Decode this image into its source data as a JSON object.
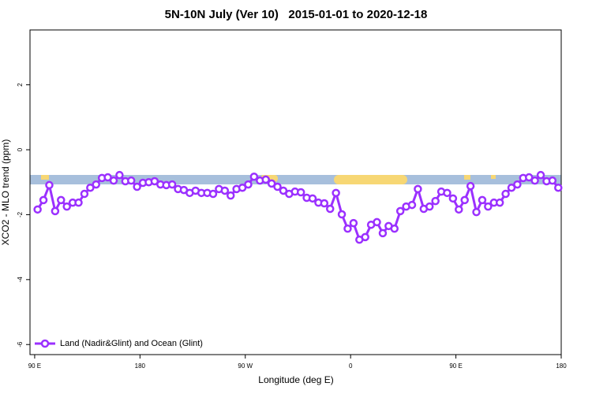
{
  "chart_data": {
    "type": "line",
    "title": "5N-10N July (Ver 10)   2015-01-01 to 2020-12-18",
    "x_label": "Longitude (deg E)",
    "y_label": "XCO2 - MLO trend (ppm)",
    "x": [
      92.5,
      97.5,
      102.5,
      107.5,
      112.5,
      117.5,
      122.5,
      127.5,
      132.5,
      137.5,
      142.5,
      147.5,
      152.5,
      157.5,
      162.5,
      167.5,
      172.5,
      177.5,
      182.5,
      187.5,
      192.5,
      197.5,
      202.5,
      207.5,
      212.5,
      217.5,
      222.5,
      227.5,
      232.5,
      237.5,
      242.5,
      247.5,
      252.5,
      257.5,
      262.5,
      267.5,
      272.5,
      277.5,
      282.5,
      287.5,
      292.5,
      297.5,
      302.5,
      307.5,
      312.5,
      317.5,
      322.5,
      327.5,
      332.5,
      337.5,
      342.5,
      347.5,
      352.5,
      357.5,
      362.5,
      367.5,
      372.5,
      377.5,
      382.5,
      387.5,
      392.5,
      397.5,
      402.5,
      407.5,
      412.5,
      417.5,
      422.5,
      427.5,
      432.5,
      437.5,
      442.5,
      447.5,
      452.5,
      457.5,
      462.5,
      467.5,
      472.5,
      477.5,
      482.5,
      487.5,
      492.5,
      497.5,
      502.5,
      507.5,
      512.5,
      517.5,
      522.5,
      527.5,
      532.5,
      537.5
    ],
    "series": [
      {
        "name": "Land (Nadir&Glint) and Ocean (Glint)",
        "color": "#9b30ff",
        "values": [
          -1.84,
          -1.55,
          -1.09,
          -1.89,
          -1.55,
          -1.75,
          -1.63,
          -1.63,
          -1.36,
          -1.17,
          -1.07,
          -0.87,
          -0.85,
          -0.95,
          -0.78,
          -0.97,
          -0.95,
          -1.14,
          -1.02,
          -1.0,
          -0.97,
          -1.07,
          -1.09,
          -1.07,
          -1.21,
          -1.24,
          -1.33,
          -1.26,
          -1.33,
          -1.33,
          -1.36,
          -1.21,
          -1.26,
          -1.41,
          -1.21,
          -1.17,
          -1.07,
          -0.83,
          -0.95,
          -0.92,
          -1.04,
          -1.14,
          -1.26,
          -1.36,
          -1.29,
          -1.31,
          -1.48,
          -1.5,
          -1.63,
          -1.65,
          -1.82,
          -1.33,
          -1.99,
          -2.43,
          -2.26,
          -2.77,
          -2.69,
          -2.31,
          -2.23,
          -2.57,
          -2.35,
          -2.43,
          -1.89,
          -1.75,
          -1.7,
          -1.21,
          -1.82,
          -1.75,
          -1.58,
          -1.29,
          -1.33,
          -1.5,
          -1.84,
          -1.55,
          -1.12,
          -1.92,
          -1.55,
          -1.75,
          -1.63,
          -1.63,
          -1.36,
          -1.17,
          -1.07,
          -0.87,
          -0.85,
          -0.95,
          -0.78,
          -0.97,
          -0.95,
          -1.17
        ]
      }
    ],
    "xlim": [
      86,
      540
    ],
    "xticks": [
      {
        "value": 90,
        "label": "90 E"
      },
      180,
      {
        "value": 270,
        "label": "90 W"
      },
      {
        "value": 360,
        "label": "0"
      },
      {
        "value": 450,
        "label": "90 E"
      },
      {
        "value": 540,
        "label": "180"
      }
    ],
    "ylim": [
      -6.31,
      3.69
    ],
    "yticks": [
      2,
      0,
      -2,
      -4,
      -6
    ],
    "legend": "bottom-left"
  }
}
